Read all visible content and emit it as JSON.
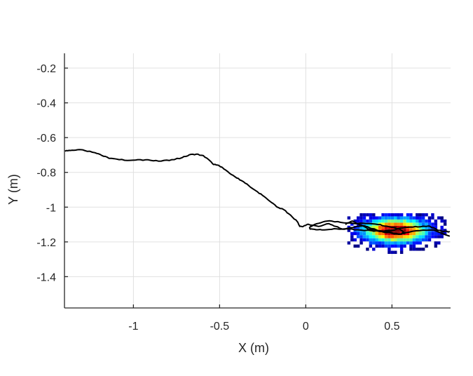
{
  "chart_data": {
    "type": "scatter",
    "title": "",
    "xlabel": "X (m)",
    "ylabel": "Y (m)",
    "xlim": [
      -1.4,
      0.84
    ],
    "ylim": [
      -1.58,
      -0.115
    ],
    "xticks": [
      -1,
      -0.5,
      0,
      0.5
    ],
    "xtick_labels": [
      "-1",
      "-0.5",
      "0",
      "0.5"
    ],
    "yticks": [
      -0.2,
      -0.4,
      -0.6,
      -0.8,
      -1,
      -1.2,
      -1.4
    ],
    "ytick_labels": [
      "-0.2",
      "-0.4",
      "-0.6",
      "-0.8",
      "-1",
      "-1.2",
      "-1.4"
    ],
    "grid": true,
    "box": false,
    "legend": null,
    "series": [
      {
        "name": "trajectory",
        "kind": "line",
        "color": "#000000",
        "x": [
          -1.397,
          -1.365,
          -1.325,
          -1.284,
          -1.223,
          -1.183,
          -1.142,
          -1.082,
          -1.021,
          -0.96,
          -0.899,
          -0.838,
          -0.777,
          -0.717,
          -0.676,
          -0.635,
          -0.595,
          -0.554,
          -0.534,
          -0.506,
          -0.481,
          -0.453,
          -0.412,
          -0.372,
          -0.331,
          -0.291,
          -0.25,
          -0.21,
          -0.169,
          -0.128,
          -0.088,
          -0.047,
          -0.035,
          -0.015,
          0.013,
          0.074,
          0.134,
          0.175,
          0.215,
          0.256,
          0.337,
          0.418,
          0.499,
          0.54,
          0.58,
          0.661,
          0.742,
          0.835
        ],
        "y": [
          -0.678,
          -0.674,
          -0.67,
          -0.674,
          -0.687,
          -0.703,
          -0.719,
          -0.727,
          -0.731,
          -0.727,
          -0.731,
          -0.735,
          -0.727,
          -0.715,
          -0.699,
          -0.695,
          -0.703,
          -0.735,
          -0.755,
          -0.759,
          -0.775,
          -0.795,
          -0.824,
          -0.848,
          -0.876,
          -0.905,
          -0.933,
          -0.965,
          -0.998,
          -1.014,
          -1.046,
          -1.086,
          -1.111,
          -1.111,
          -1.098,
          -1.111,
          -1.095,
          -1.111,
          -1.127,
          -1.119,
          -1.107,
          -1.135,
          -1.147,
          -1.155,
          -1.147,
          -1.135,
          -1.131,
          -1.167
        ]
      },
      {
        "name": "trajectory-loop-1",
        "kind": "line",
        "color": "#000000",
        "x": [
          0.02,
          0.05,
          0.1,
          0.15,
          0.22,
          0.28,
          0.35,
          0.42,
          0.47,
          0.52,
          0.55,
          0.57,
          0.55,
          0.5,
          0.44,
          0.38,
          0.3,
          0.24,
          0.18,
          0.12,
          0.07,
          0.03,
          0.02
        ],
        "y": [
          -1.12,
          -1.1,
          -1.085,
          -1.08,
          -1.09,
          -1.095,
          -1.095,
          -1.1,
          -1.11,
          -1.12,
          -1.13,
          -1.145,
          -1.155,
          -1.15,
          -1.14,
          -1.135,
          -1.13,
          -1.125,
          -1.125,
          -1.13,
          -1.13,
          -1.125,
          -1.12
        ]
      },
      {
        "name": "trajectory-loop-2",
        "kind": "line",
        "color": "#000000",
        "x": [
          0.23,
          0.27,
          0.31,
          0.36,
          0.43,
          0.5,
          0.56,
          0.62,
          0.68,
          0.72,
          0.76,
          0.8,
          0.835
        ],
        "y": [
          -1.1,
          -1.08,
          -1.1,
          -1.125,
          -1.14,
          -1.135,
          -1.12,
          -1.115,
          -1.11,
          -1.11,
          -1.13,
          -1.14,
          -1.14
        ]
      },
      {
        "name": "density-heatmap",
        "kind": "heatmap",
        "center": [
          0.52,
          -1.135
        ],
        "sigma": [
          0.12,
          0.045
        ],
        "cell_size": 0.018,
        "colormap": "jet",
        "extent_x": [
          0.25,
          0.82
        ],
        "extent_y": [
          -1.26,
          -1.04
        ]
      }
    ]
  },
  "figure": {
    "background": "#ffffff",
    "axis_color": "#262626",
    "grid_color": "#e0e0e0",
    "line_color": "#000000"
  }
}
